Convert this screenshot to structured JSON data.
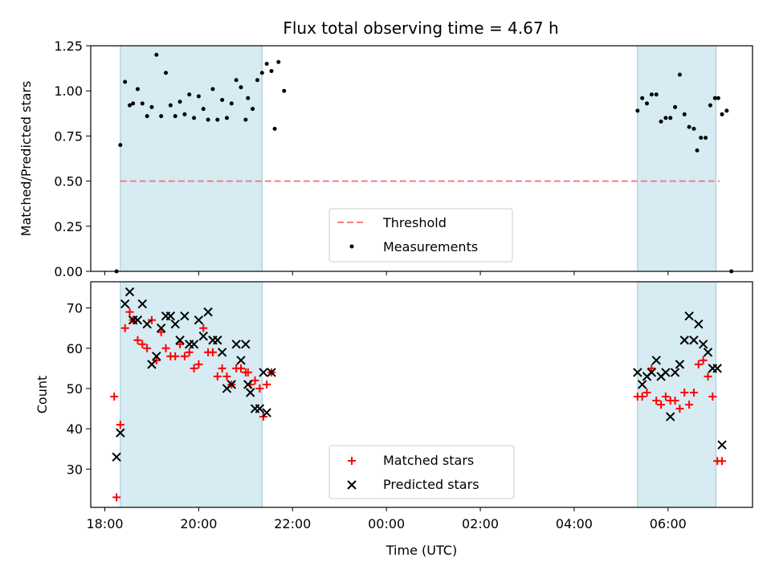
{
  "chart_data": [
    {
      "type": "scatter",
      "title": "Flux total observing time = 4.67 h",
      "ylabel": "Matched/Predicted stars",
      "ylim": [
        0,
        1.25
      ],
      "yticks": [
        "0.00",
        "0.25",
        "0.50",
        "0.75",
        "1.00",
        "1.25"
      ],
      "xlim": [
        17.7,
        31.8
      ],
      "grid": false,
      "shaded_intervals": [
        [
          18.33,
          21.35
        ],
        [
          29.35,
          31.02
        ]
      ],
      "threshold": {
        "value": 0.5,
        "from": 18.33,
        "to": 31.1,
        "color": "#f08080"
      },
      "legend": {
        "position": "bottom-center",
        "threshold_label": "Threshold",
        "measurements_label": "Measurements"
      },
      "series": [
        {
          "name": "Measurements",
          "color": "#000000",
          "points": [
            [
              18.25,
              0.0
            ],
            [
              18.33,
              0.7
            ],
            [
              18.43,
              1.05
            ],
            [
              18.53,
              0.92
            ],
            [
              18.6,
              0.93
            ],
            [
              18.7,
              1.01
            ],
            [
              18.8,
              0.93
            ],
            [
              18.9,
              0.86
            ],
            [
              19.0,
              0.91
            ],
            [
              19.1,
              1.2
            ],
            [
              19.2,
              0.86
            ],
            [
              19.3,
              1.1
            ],
            [
              19.4,
              0.92
            ],
            [
              19.5,
              0.86
            ],
            [
              19.6,
              0.94
            ],
            [
              19.7,
              0.87
            ],
            [
              19.8,
              0.98
            ],
            [
              19.9,
              0.85
            ],
            [
              20.0,
              0.97
            ],
            [
              20.1,
              0.9
            ],
            [
              20.2,
              0.84
            ],
            [
              20.3,
              1.01
            ],
            [
              20.4,
              0.84
            ],
            [
              20.5,
              0.95
            ],
            [
              20.6,
              0.85
            ],
            [
              20.7,
              0.93
            ],
            [
              20.8,
              1.06
            ],
            [
              20.9,
              1.02
            ],
            [
              21.0,
              0.84
            ],
            [
              21.05,
              0.96
            ],
            [
              21.15,
              0.9
            ],
            [
              21.25,
              1.06
            ],
            [
              21.35,
              1.1
            ],
            [
              21.45,
              1.15
            ],
            [
              21.55,
              1.11
            ],
            [
              21.62,
              0.79
            ],
            [
              21.7,
              1.16
            ],
            [
              21.82,
              1.0
            ],
            [
              29.35,
              0.89
            ],
            [
              29.45,
              0.96
            ],
            [
              29.55,
              0.93
            ],
            [
              29.65,
              0.98
            ],
            [
              29.75,
              0.98
            ],
            [
              29.85,
              0.83
            ],
            [
              29.95,
              0.85
            ],
            [
              30.05,
              0.85
            ],
            [
              30.15,
              0.91
            ],
            [
              30.25,
              1.09
            ],
            [
              30.35,
              0.87
            ],
            [
              30.45,
              0.8
            ],
            [
              30.55,
              0.79
            ],
            [
              30.62,
              0.67
            ],
            [
              30.7,
              0.74
            ],
            [
              30.8,
              0.74
            ],
            [
              30.9,
              0.92
            ],
            [
              31.0,
              0.96
            ],
            [
              31.07,
              0.96
            ],
            [
              31.15,
              0.87
            ],
            [
              31.25,
              0.89
            ],
            [
              31.35,
              0.0
            ]
          ]
        }
      ]
    },
    {
      "type": "scatter",
      "xlabel": "Time (UTC)",
      "ylabel": "Count",
      "ylim": [
        20.5,
        76.5
      ],
      "yticks": [
        "30",
        "40",
        "50",
        "60",
        "70"
      ],
      "xlim": [
        17.7,
        31.8
      ],
      "xticks": [
        "18:00",
        "20:00",
        "22:00",
        "00:00",
        "02:00",
        "04:00",
        "06:00"
      ],
      "grid": false,
      "shaded_intervals": [
        [
          18.33,
          21.35
        ],
        [
          29.35,
          31.02
        ]
      ],
      "legend": {
        "position": "bottom-center"
      },
      "series": [
        {
          "name": "Matched stars",
          "marker": "plus",
          "color": "#ff0000",
          "points": [
            [
              18.2,
              48
            ],
            [
              18.25,
              23
            ],
            [
              18.33,
              41
            ],
            [
              18.43,
              65
            ],
            [
              18.53,
              69
            ],
            [
              18.6,
              67
            ],
            [
              18.7,
              62
            ],
            [
              18.8,
              61
            ],
            [
              18.9,
              60
            ],
            [
              19.0,
              67
            ],
            [
              19.1,
              57
            ],
            [
              19.2,
              64
            ],
            [
              19.3,
              60
            ],
            [
              19.4,
              58
            ],
            [
              19.5,
              58
            ],
            [
              19.6,
              61
            ],
            [
              19.7,
              58
            ],
            [
              19.8,
              59
            ],
            [
              19.9,
              55
            ],
            [
              20.0,
              56
            ],
            [
              20.1,
              65
            ],
            [
              20.2,
              59
            ],
            [
              20.3,
              59
            ],
            [
              20.4,
              53
            ],
            [
              20.5,
              55
            ],
            [
              20.6,
              53
            ],
            [
              20.7,
              51
            ],
            [
              20.8,
              55
            ],
            [
              20.9,
              55
            ],
            [
              21.0,
              54
            ],
            [
              21.05,
              54
            ],
            [
              21.1,
              51
            ],
            [
              21.2,
              52
            ],
            [
              21.3,
              50
            ],
            [
              21.38,
              43
            ],
            [
              21.45,
              51
            ],
            [
              21.55,
              54
            ],
            [
              29.35,
              48
            ],
            [
              29.45,
              48
            ],
            [
              29.55,
              49
            ],
            [
              29.65,
              55
            ],
            [
              29.75,
              47
            ],
            [
              29.85,
              46
            ],
            [
              29.95,
              48
            ],
            [
              30.05,
              47
            ],
            [
              30.15,
              47
            ],
            [
              30.25,
              45
            ],
            [
              30.35,
              49
            ],
            [
              30.45,
              46
            ],
            [
              30.55,
              49
            ],
            [
              30.65,
              56
            ],
            [
              30.75,
              57
            ],
            [
              30.85,
              53
            ],
            [
              30.95,
              48
            ],
            [
              31.05,
              32
            ],
            [
              31.15,
              32
            ]
          ]
        },
        {
          "name": "Predicted stars",
          "marker": "x",
          "color": "#000000",
          "points": [
            [
              18.25,
              33
            ],
            [
              18.33,
              39
            ],
            [
              18.43,
              71
            ],
            [
              18.53,
              74
            ],
            [
              18.6,
              67
            ],
            [
              18.7,
              67
            ],
            [
              18.8,
              71
            ],
            [
              18.9,
              66
            ],
            [
              19.0,
              56
            ],
            [
              19.1,
              58
            ],
            [
              19.2,
              65
            ],
            [
              19.3,
              68
            ],
            [
              19.4,
              68
            ],
            [
              19.5,
              66
            ],
            [
              19.6,
              62
            ],
            [
              19.7,
              68
            ],
            [
              19.8,
              61
            ],
            [
              19.9,
              61
            ],
            [
              20.0,
              67
            ],
            [
              20.1,
              63
            ],
            [
              20.2,
              69
            ],
            [
              20.3,
              62
            ],
            [
              20.4,
              62
            ],
            [
              20.5,
              59
            ],
            [
              20.6,
              50
            ],
            [
              20.7,
              51
            ],
            [
              20.8,
              61
            ],
            [
              20.9,
              57
            ],
            [
              21.0,
              61
            ],
            [
              21.05,
              51
            ],
            [
              21.1,
              49
            ],
            [
              21.2,
              45
            ],
            [
              21.3,
              45
            ],
            [
              21.38,
              54
            ],
            [
              21.45,
              44
            ],
            [
              21.55,
              54
            ],
            [
              29.35,
              54
            ],
            [
              29.45,
              51
            ],
            [
              29.55,
              53
            ],
            [
              29.65,
              54
            ],
            [
              29.75,
              57
            ],
            [
              29.85,
              53
            ],
            [
              29.95,
              54
            ],
            [
              30.05,
              43
            ],
            [
              30.15,
              54
            ],
            [
              30.25,
              56
            ],
            [
              30.35,
              62
            ],
            [
              30.45,
              68
            ],
            [
              30.55,
              62
            ],
            [
              30.65,
              66
            ],
            [
              30.75,
              61
            ],
            [
              30.85,
              59
            ],
            [
              30.95,
              55
            ],
            [
              31.05,
              55
            ],
            [
              31.15,
              36
            ]
          ]
        }
      ]
    }
  ]
}
